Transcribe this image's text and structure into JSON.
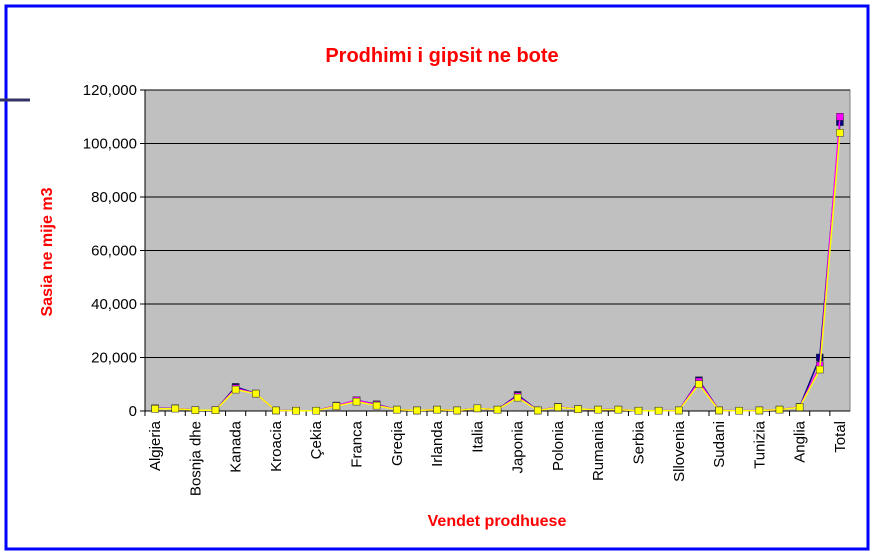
{
  "chart_data": {
    "type": "line",
    "title": "Prodhimi i gipsit ne bote",
    "x_label": "Vendet prodhuese",
    "y_label": "Sasia ne mije m3",
    "categories": [
      "Algjeria",
      null,
      "Bosnja dhe",
      null,
      "Kanada",
      null,
      "Kroacia",
      null,
      "Çekia",
      null,
      "Franca",
      null,
      "Greqia",
      null,
      "Irlanda",
      null,
      "Italia",
      null,
      "Japonia",
      null,
      "Polonia",
      null,
      "Rumania",
      null,
      "Serbia",
      null,
      "Sllovenia",
      null,
      "Sudani",
      null,
      "Tunizia",
      null,
      "Anglia",
      null,
      "Total"
    ],
    "series": [
      {
        "color": "#000080",
        "values": [
          1000,
          1000,
          300,
          300,
          9000,
          6500,
          200,
          100,
          100,
          2000,
          4000,
          2500,
          500,
          200,
          500,
          200,
          1000,
          500,
          6000,
          200,
          1500,
          700,
          500,
          500,
          100,
          100,
          200,
          11500,
          200,
          100,
          200,
          500,
          1500,
          20000,
          108000
        ]
      },
      {
        "color": "#ff00ff",
        "values": [
          900,
          1000,
          300,
          300,
          8500,
          6500,
          200,
          100,
          100,
          2000,
          4000,
          2300,
          500,
          200,
          500,
          200,
          1000,
          500,
          5500,
          200,
          1500,
          700,
          500,
          500,
          100,
          100,
          200,
          11000,
          200,
          100,
          200,
          500,
          1500,
          17000,
          110000
        ]
      },
      {
        "color": "#ffff00",
        "values": [
          800,
          900,
          300,
          300,
          8000,
          6500,
          200,
          100,
          100,
          1800,
          3500,
          2000,
          500,
          200,
          500,
          200,
          1000,
          500,
          5000,
          200,
          1400,
          700,
          500,
          500,
          100,
          100,
          200,
          10000,
          200,
          100,
          200,
          500,
          1400,
          15500,
          104000
        ]
      }
    ],
    "ylim": [
      0,
      120000
    ],
    "yticks": [
      0,
      {
        "value": 20000,
        "label": "20,000"
      },
      {
        "value": 40000,
        "label": "40,000"
      },
      {
        "value": 60000,
        "label": "60,000"
      },
      {
        "value": 80000,
        "label": "80,000"
      },
      {
        "value": 100000,
        "label": "100,000"
      },
      {
        "value": 120000,
        "label": "120,000"
      }
    ],
    "grid": true
  }
}
